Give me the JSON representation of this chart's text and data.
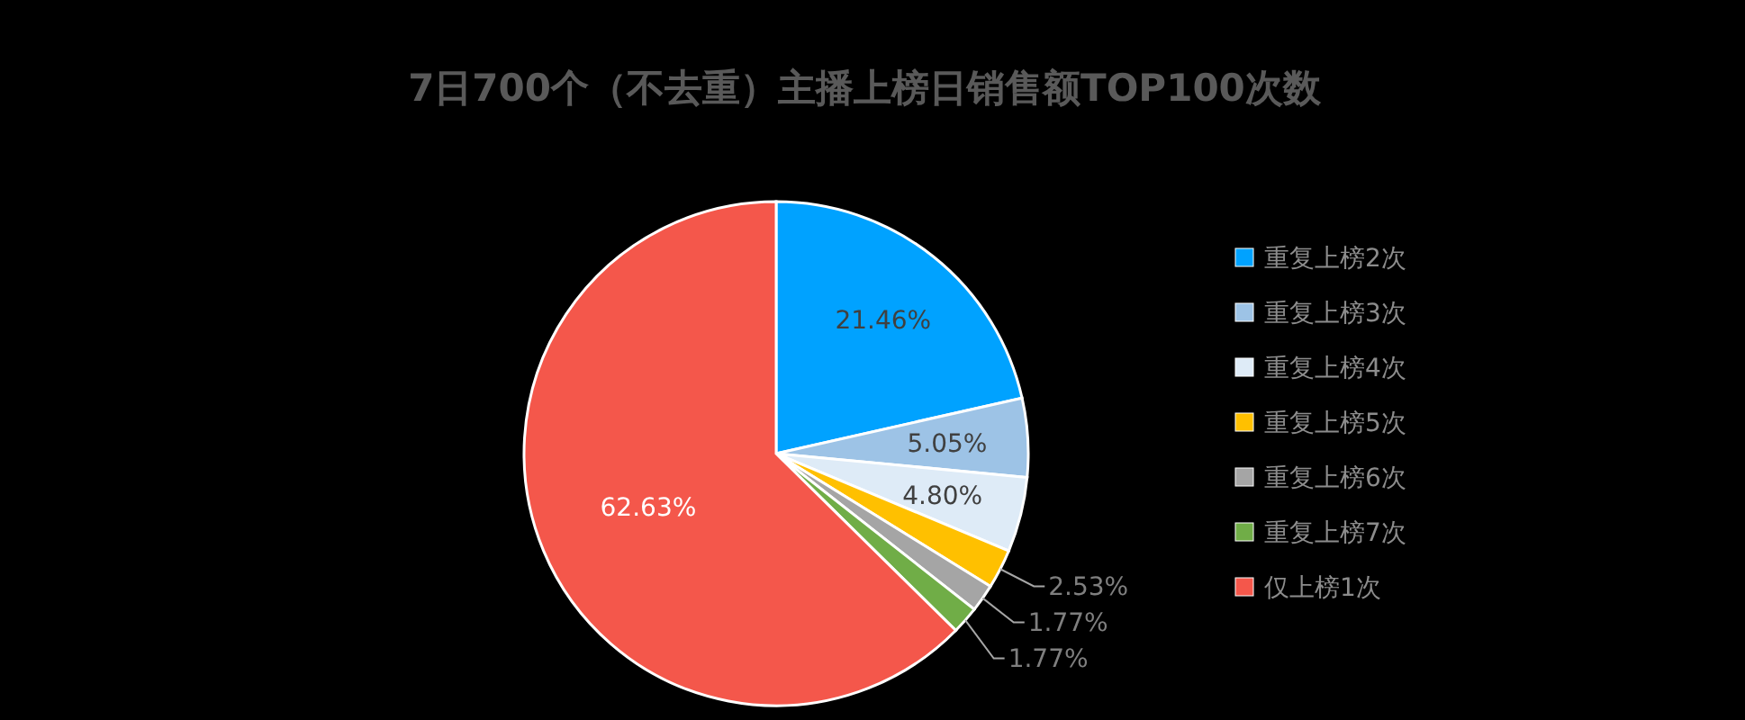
{
  "chart_data": {
    "type": "pie",
    "title": "7日700个（不去重）主播上榜日销售额TOP100次数",
    "categories": [
      "重复上榜2次",
      "重复上榜3次",
      "重复上榜4次",
      "重复上榜5次",
      "重复上榜6次",
      "重复上榜7次",
      "仅上榜1次"
    ],
    "values": [
      21.46,
      5.05,
      4.8,
      2.53,
      1.77,
      1.77,
      62.63
    ],
    "value_labels": [
      "21.46%",
      "5.05%",
      "4.80%",
      "2.53%",
      "1.77%",
      "1.77%",
      "62.63%"
    ],
    "colors": [
      "#00a2ff",
      "#9dc3e6",
      "#deebf7",
      "#ffc000",
      "#a5a5a5",
      "#70ad47",
      "#f4574b"
    ],
    "legend": "right"
  }
}
